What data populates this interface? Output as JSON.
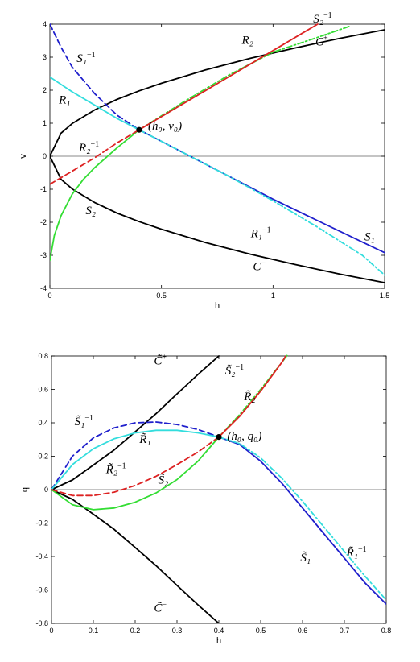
{
  "chart_data": [
    {
      "type": "line",
      "xlabel": "h",
      "ylabel": "v",
      "xlim": [
        0,
        1.5
      ],
      "ylim": [
        -4,
        4
      ],
      "xticks": [
        0,
        0.5,
        1,
        1.5
      ],
      "xtick_labels": [
        "0",
        "0.5",
        "1",
        "1.5"
      ],
      "yticks": [
        -4,
        -3,
        -2,
        -1,
        0,
        1,
        2,
        3,
        4
      ],
      "ytick_labels": [
        "-4",
        "-3",
        "-2",
        "-1",
        "0",
        "1",
        "2",
        "3",
        "4"
      ],
      "zero_line": true,
      "grid": false,
      "point": {
        "x": 0.4,
        "y": 0.8,
        "label": "(h₀, v₀)"
      },
      "series": [
        {
          "name": "C⁺",
          "color": "#000000",
          "style": "solid",
          "x": [
            0,
            0.05,
            0.1,
            0.2,
            0.3,
            0.4,
            0.5,
            0.7,
            0.9,
            1.1,
            1.3,
            1.5
          ],
          "y": [
            0,
            0.7,
            0.99,
            1.4,
            1.72,
            1.98,
            2.21,
            2.62,
            2.97,
            3.28,
            3.57,
            3.83
          ]
        },
        {
          "name": "C⁻",
          "color": "#000000",
          "style": "solid",
          "x": [
            0,
            0.05,
            0.1,
            0.2,
            0.3,
            0.4,
            0.5,
            0.7,
            0.9,
            1.1,
            1.3,
            1.5
          ],
          "y": [
            0,
            -0.7,
            -0.99,
            -1.4,
            -1.72,
            -1.98,
            -2.21,
            -2.62,
            -2.97,
            -3.28,
            -3.57,
            -3.83
          ]
        },
        {
          "name": "S₁",
          "color": "#1f1fcc",
          "style": "solid",
          "x": [
            0.4,
            0.5,
            0.6,
            0.8,
            1.0,
            1.2,
            1.4,
            1.5
          ],
          "y": [
            0.8,
            0.45,
            0.1,
            -0.6,
            -1.3,
            -1.95,
            -2.6,
            -2.92
          ]
        },
        {
          "name": "S₁⁻¹",
          "color": "#1f1fcc",
          "style": "dashed",
          "x": [
            0,
            0.05,
            0.1,
            0.2,
            0.3,
            0.4
          ],
          "y": [
            4.0,
            3.3,
            2.7,
            1.9,
            1.25,
            0.8
          ]
        },
        {
          "name": "R₁",
          "color": "#33dddd",
          "style": "solid",
          "x": [
            0,
            0.1,
            0.2,
            0.3,
            0.4
          ],
          "y": [
            2.4,
            1.95,
            1.55,
            1.15,
            0.8
          ]
        },
        {
          "name": "R₁⁻¹",
          "color": "#33dddd",
          "style": "dashdot",
          "x": [
            0.4,
            0.6,
            0.8,
            1.0,
            1.2,
            1.4,
            1.5
          ],
          "y": [
            0.8,
            0.1,
            -0.6,
            -1.35,
            -2.15,
            -3.0,
            -3.6
          ]
        },
        {
          "name": "S₂",
          "color": "#33dd33",
          "style": "solid",
          "x": [
            0,
            0.02,
            0.05,
            0.1,
            0.15,
            0.2,
            0.3,
            0.4
          ],
          "y": [
            -3.15,
            -2.4,
            -1.8,
            -1.15,
            -0.7,
            -0.35,
            0.25,
            0.8
          ]
        },
        {
          "name": "S₂⁻¹",
          "color": "#33dd33",
          "style": "dashdot",
          "x": [
            0.4,
            0.6,
            0.8,
            1.0,
            1.2,
            1.35
          ],
          "y": [
            0.8,
            1.65,
            2.45,
            3.15,
            3.6,
            3.95
          ]
        },
        {
          "name": "R₂",
          "color": "#dd2222",
          "style": "solid",
          "x": [
            0.4,
            0.6,
            0.8,
            1.0,
            1.2
          ],
          "y": [
            0.8,
            1.6,
            2.4,
            3.2,
            4.0
          ]
        },
        {
          "name": "R₂⁻¹",
          "color": "#dd2222",
          "style": "dashed",
          "x": [
            0,
            0.1,
            0.2,
            0.3,
            0.4
          ],
          "y": [
            -0.85,
            -0.45,
            -0.05,
            0.4,
            0.8
          ]
        }
      ],
      "annotations": [
        {
          "text": "C",
          "sup": "+",
          "x": 1.19,
          "y": 3.35
        },
        {
          "text": "C",
          "sup": "−",
          "x": 0.91,
          "y": -3.45
        },
        {
          "text": "S₁",
          "sup": "−1",
          "x": 0.12,
          "y": 2.85
        },
        {
          "text": "R₁",
          "sup": "",
          "x": 0.04,
          "y": 1.6
        },
        {
          "text": "R₂",
          "sup": "−1",
          "x": 0.13,
          "y": 0.15
        },
        {
          "text": "S₂",
          "sup": "",
          "x": 0.16,
          "y": -1.75
        },
        {
          "text": "R₂",
          "sup": "",
          "x": 0.86,
          "y": 3.4
        },
        {
          "text": "S₂",
          "sup": "−1",
          "x": 1.18,
          "y": 4.05
        },
        {
          "text": "R₁",
          "sup": "−1",
          "x": 0.9,
          "y": -2.45
        },
        {
          "text": "S₁",
          "sup": "",
          "x": 1.41,
          "y": -2.55
        },
        {
          "text": "(h₀, v₀)",
          "sup": "",
          "x": 0.44,
          "y": 0.8
        }
      ]
    },
    {
      "type": "line",
      "xlabel": "h",
      "ylabel": "q",
      "xlim": [
        0,
        0.8
      ],
      "ylim": [
        -0.8,
        0.8
      ],
      "xticks": [
        0,
        0.1,
        0.2,
        0.3,
        0.4,
        0.5,
        0.6,
        0.7,
        0.8
      ],
      "xtick_labels": [
        "0",
        "0.1",
        "0.2",
        "0.3",
        "0.4",
        "0.5",
        "0.6",
        "0.7",
        "0.8"
      ],
      "yticks": [
        -0.8,
        -0.6,
        -0.4,
        -0.2,
        0,
        0.2,
        0.4,
        0.6,
        0.8
      ],
      "ytick_labels": [
        "-0.8",
        "-0.6",
        "-0.4",
        "-0.2",
        "0",
        "0.2",
        "0.4",
        "0.6",
        "0.8"
      ],
      "zero_line": true,
      "grid": false,
      "point": {
        "x": 0.4,
        "y": 0.315,
        "label": "(h₀, q₀)"
      },
      "series": [
        {
          "name": "C̃⁺",
          "color": "#000000",
          "style": "solid",
          "x": [
            0,
            0.05,
            0.1,
            0.15,
            0.2,
            0.25,
            0.3,
            0.35,
            0.4
          ],
          "y": [
            0,
            0.058,
            0.147,
            0.238,
            0.346,
            0.455,
            0.573,
            0.689,
            0.8
          ]
        },
        {
          "name": "C̃⁻",
          "color": "#000000",
          "style": "solid",
          "x": [
            0,
            0.05,
            0.1,
            0.15,
            0.2,
            0.25,
            0.3,
            0.35,
            0.4
          ],
          "y": [
            0,
            -0.058,
            -0.147,
            -0.238,
            -0.346,
            -0.455,
            -0.573,
            -0.689,
            -0.8
          ]
        },
        {
          "name": "S̃₁",
          "color": "#1f1fcc",
          "style": "solid",
          "x": [
            0.4,
            0.45,
            0.5,
            0.55,
            0.6,
            0.65,
            0.7,
            0.75,
            0.8
          ],
          "y": [
            0.315,
            0.27,
            0.17,
            0.04,
            -0.11,
            -0.26,
            -0.41,
            -0.56,
            -0.685
          ]
        },
        {
          "name": "S̃₁⁻¹",
          "color": "#1f1fcc",
          "style": "dashed",
          "x": [
            0,
            0.05,
            0.1,
            0.15,
            0.2,
            0.25,
            0.3,
            0.35,
            0.4
          ],
          "y": [
            0,
            0.2,
            0.31,
            0.37,
            0.4,
            0.405,
            0.39,
            0.36,
            0.315
          ]
        },
        {
          "name": "R̃₁",
          "color": "#33dddd",
          "style": "solid",
          "x": [
            0,
            0.05,
            0.1,
            0.15,
            0.2,
            0.25,
            0.3,
            0.35,
            0.4
          ],
          "y": [
            0,
            0.15,
            0.245,
            0.305,
            0.34,
            0.355,
            0.355,
            0.34,
            0.315
          ]
        },
        {
          "name": "R̃₁⁻¹",
          "color": "#33dddd",
          "style": "dashdot",
          "x": [
            0.4,
            0.45,
            0.5,
            0.55,
            0.6,
            0.65,
            0.7,
            0.75,
            0.8
          ],
          "y": [
            0.315,
            0.275,
            0.19,
            0.07,
            -0.07,
            -0.22,
            -0.37,
            -0.52,
            -0.66
          ]
        },
        {
          "name": "S̃₂",
          "color": "#33dd33",
          "style": "solid",
          "x": [
            0,
            0.05,
            0.1,
            0.15,
            0.2,
            0.25,
            0.3,
            0.35,
            0.4
          ],
          "y": [
            0,
            -0.09,
            -0.12,
            -0.11,
            -0.075,
            -0.02,
            0.06,
            0.17,
            0.315
          ]
        },
        {
          "name": "S̃₂⁻¹",
          "color": "#33dd33",
          "style": "dashdot",
          "x": [
            0.4,
            0.45,
            0.5,
            0.55,
            0.565
          ],
          "y": [
            0.315,
            0.45,
            0.6,
            0.76,
            0.81
          ]
        },
        {
          "name": "R̃₂",
          "color": "#dd2222",
          "style": "solid",
          "x": [
            0.4,
            0.45,
            0.5,
            0.55,
            0.56
          ],
          "y": [
            0.315,
            0.44,
            0.59,
            0.76,
            0.8
          ]
        },
        {
          "name": "R̃₂⁻¹",
          "color": "#dd2222",
          "style": "dashed",
          "x": [
            0,
            0.05,
            0.1,
            0.15,
            0.2,
            0.25,
            0.3,
            0.35,
            0.4
          ],
          "y": [
            0,
            -0.035,
            -0.035,
            -0.015,
            0.025,
            0.08,
            0.15,
            0.225,
            0.315
          ]
        }
      ],
      "annotations": [
        {
          "text": "C̃",
          "sup": "+",
          "x": 0.245,
          "y": 0.75
        },
        {
          "text": "C̃",
          "sup": "−",
          "x": 0.245,
          "y": -0.73
        },
        {
          "text": "S̃₁",
          "sup": "−1",
          "x": 0.055,
          "y": 0.385
        },
        {
          "text": "R̃₁",
          "sup": "",
          "x": 0.21,
          "y": 0.28
        },
        {
          "text": "R̃₂",
          "sup": "−1",
          "x": 0.13,
          "y": 0.1
        },
        {
          "text": "S̃₂",
          "sup": "",
          "x": 0.255,
          "y": 0.035
        },
        {
          "text": "S̃₂",
          "sup": "−1",
          "x": 0.415,
          "y": 0.69
        },
        {
          "text": "R̃₂",
          "sup": "",
          "x": 0.46,
          "y": 0.535
        },
        {
          "text": "S̃₁",
          "sup": "",
          "x": 0.595,
          "y": -0.43
        },
        {
          "text": "R̃₁",
          "sup": "−1",
          "x": 0.705,
          "y": -0.4
        },
        {
          "text": "(h₀, q₀)",
          "sup": "",
          "x": 0.42,
          "y": 0.3
        }
      ]
    }
  ]
}
